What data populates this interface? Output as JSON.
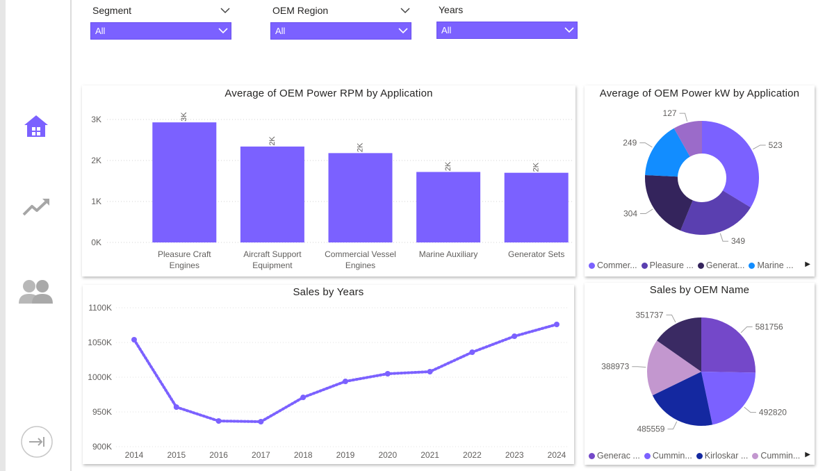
{
  "filters": [
    {
      "label": "Segment",
      "value": "All"
    },
    {
      "label": "OEM Region",
      "value": "All"
    },
    {
      "label": "Years",
      "value": "All"
    }
  ],
  "nav": {
    "items": [
      {
        "icon": "home-icon",
        "active": true
      },
      {
        "icon": "trend-icon",
        "active": false
      },
      {
        "icon": "users-icon",
        "active": false
      },
      {
        "icon": "expand-icon",
        "active": false
      }
    ]
  },
  "colors": {
    "accent": "#7b61ff",
    "bar": "#7b61ff",
    "line": "#7b61ff"
  },
  "chart_data": [
    {
      "type": "bar",
      "title": "Average of OEM Power RPM by Application",
      "categories": [
        [
          "Pleasure Craft",
          "Engines"
        ],
        [
          "Aircraft Support",
          "Equipment"
        ],
        [
          "Commercial Vessel",
          "Engines"
        ],
        [
          "Marine Auxiliary"
        ],
        [
          "Generator Sets"
        ]
      ],
      "values": [
        2930,
        2340,
        2180,
        1720,
        1700
      ],
      "data_labels": [
        "3K",
        "2K",
        "2K",
        "2K",
        "2K"
      ],
      "yticks": [
        "0K",
        "1K",
        "2K",
        "3K"
      ],
      "ylim": [
        0,
        3000
      ],
      "grid": true
    },
    {
      "type": "pie",
      "donut": true,
      "title": "Average of OEM Power kW by Application",
      "values": [
        523,
        349,
        304,
        249,
        127
      ],
      "labels": [
        "523",
        "349",
        "304",
        "249",
        "127"
      ],
      "colors": [
        "#7b61ff",
        "#5a3fb0",
        "#34245c",
        "#128dff",
        "#9b6bc9"
      ],
      "legend": [
        "Commer...",
        "Pleasure ...",
        "Generat...",
        "Marine ..."
      ],
      "legend_colors": [
        "#7b61ff",
        "#5a3fb0",
        "#34245c",
        "#128dff"
      ]
    },
    {
      "type": "line",
      "title": "Sales by Years",
      "x": [
        "2014",
        "2015",
        "2016",
        "2017",
        "2018",
        "2019",
        "2020",
        "2021",
        "2022",
        "2023",
        "2024"
      ],
      "values": [
        1054000,
        957000,
        937000,
        936000,
        971000,
        994000,
        1005000,
        1008000,
        1036000,
        1059000,
        1076000
      ],
      "yticks": [
        "900K",
        "950K",
        "1000K",
        "1050K",
        "1100K"
      ],
      "ylim": [
        900000,
        1100000
      ]
    },
    {
      "type": "pie",
      "title": "Sales by OEM Name",
      "values": [
        581756,
        492820,
        485559,
        388973,
        351737
      ],
      "labels": [
        "581756",
        "492820",
        "485559",
        "388973",
        "351737"
      ],
      "colors": [
        "#7448c9",
        "#7b61ff",
        "#1428a0",
        "#c397cf",
        "#3a2a63"
      ],
      "legend": [
        "Generac ...",
        "Cummin...",
        "Kirloskar ...",
        "Cummin..."
      ],
      "legend_colors": [
        "#7448c9",
        "#7b61ff",
        "#1428a0",
        "#c397cf"
      ]
    }
  ]
}
